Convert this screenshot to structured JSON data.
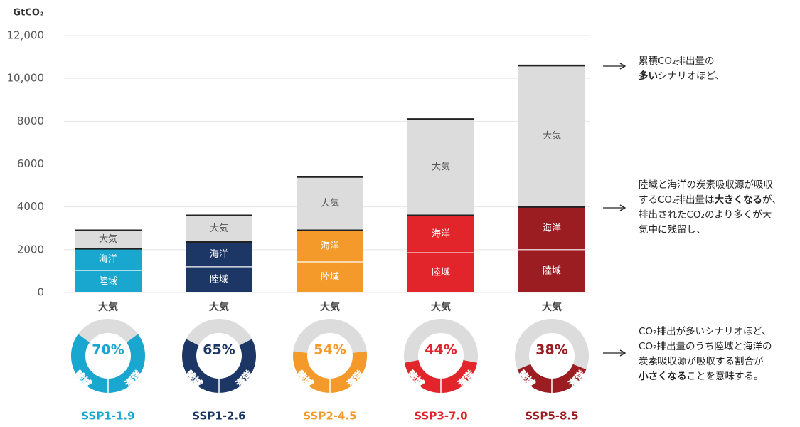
{
  "chart_data": [
    {
      "type": "bar",
      "stacked": true,
      "y_label": "GtCO₂",
      "categories": [
        "SSP1-1.9",
        "SSP1-2.6",
        "SSP2-4.5",
        "SSP3-7.0",
        "SSP5-8.5"
      ],
      "category_colors": [
        "#1aa7cf",
        "#1c3766",
        "#f39a2a",
        "#e2242b",
        "#9b1c21"
      ],
      "series": [
        {
          "name": "陸域",
          "values": [
            1030,
            1200,
            1430,
            1860,
            2000
          ]
        },
        {
          "name": "海洋",
          "values": [
            1020,
            1160,
            1470,
            1740,
            2000
          ]
        },
        {
          "name": "大気",
          "color": "#dcdcdc",
          "values": [
            850,
            1240,
            2500,
            4500,
            6600
          ]
        }
      ],
      "ylim": [
        0,
        12000
      ],
      "yticks": [
        0,
        2000,
        4000,
        6000,
        8000,
        {
          "value": 10000,
          "label": "10,000"
        },
        {
          "value": 12000,
          "label": "12,000"
        }
      ],
      "grid": true
    },
    {
      "type": "donut",
      "total": 100,
      "values": [
        70,
        65,
        54,
        44,
        38
      ],
      "value_labels": [
        "70%",
        "65%",
        "54%",
        "44%",
        "38%"
      ],
      "track_color": "#dcdcdc"
    }
  ],
  "annotations": [
    [
      [
        {
          "text": "累積CO₂排出量の",
          "bold": false
        }
      ],
      [
        {
          "text": "多い",
          "bold": true
        },
        {
          "text": "シナリオほど、",
          "bold": false
        }
      ]
    ],
    [
      [
        {
          "text": "陸域と海洋の炭素吸収源が吸収",
          "bold": false
        }
      ],
      [
        {
          "text": "するCO₂排出量は",
          "bold": false
        },
        {
          "text": "大きくなる",
          "bold": true
        },
        {
          "text": "が、",
          "bold": false
        }
      ],
      [
        {
          "text": "排出されたCO₂のより多くが大",
          "bold": false
        }
      ],
      [
        {
          "text": "気中に残留し、",
          "bold": false
        }
      ]
    ],
    [
      [
        {
          "text": "CO₂排出が多いシナリオほど、",
          "bold": false
        }
      ],
      [
        {
          "text": "CO₂排出量のうち陸域と海洋の",
          "bold": false
        }
      ],
      [
        {
          "text": "炭素吸収源が吸収する割合が",
          "bold": false
        }
      ],
      [
        {
          "text": "小さくなる",
          "bold": true
        },
        {
          "text": "ことを意味する。",
          "bold": false
        }
      ]
    ]
  ]
}
